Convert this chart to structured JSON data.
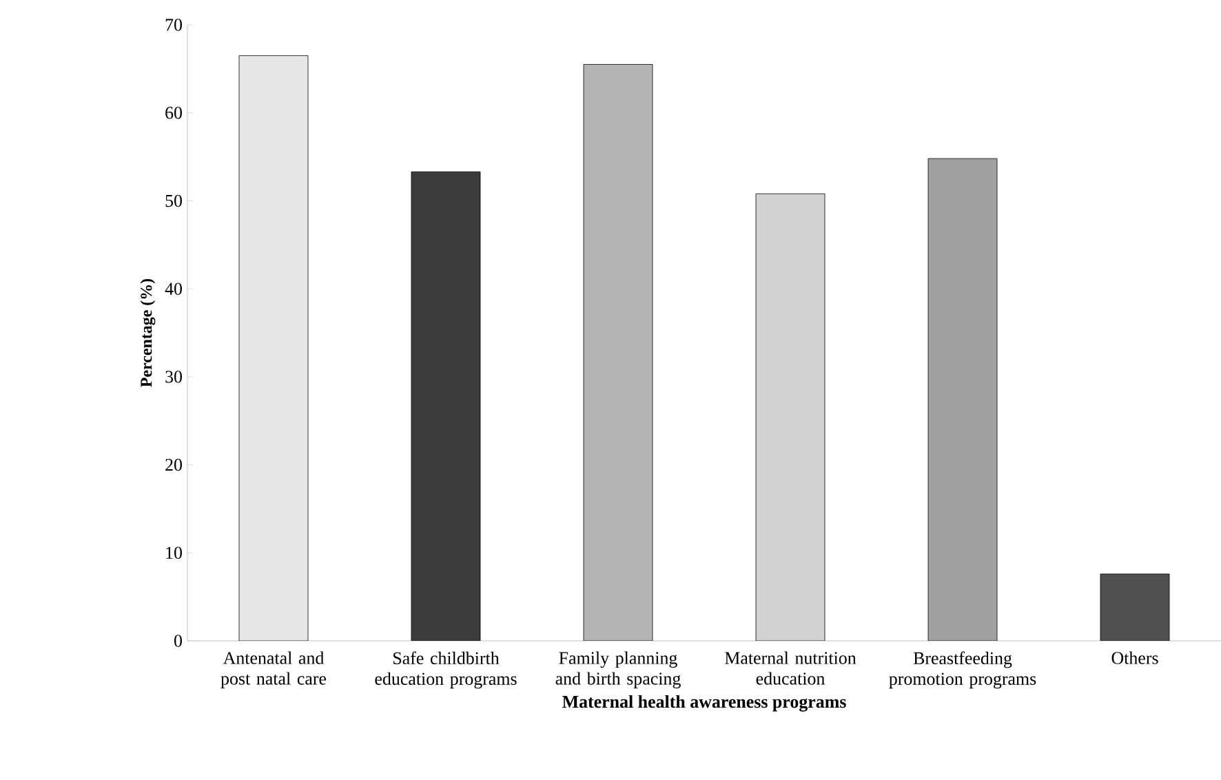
{
  "chart_data": {
    "type": "bar",
    "xlabel": "Maternal health awareness programs",
    "ylabel": "Percentage (%)",
    "categories": [
      "Antenatal and post natal care",
      "Safe childbirth education programs",
      "Family planning and birth spacing",
      "Maternal nutrition education",
      "Breastfeeding promotion programs",
      "Others"
    ],
    "values": [
      66.5,
      53.3,
      65.5,
      50.8,
      54.8,
      7.6
    ],
    "colors": [
      "#e6e6e6",
      "#3c3c3c",
      "#b4b4b4",
      "#d2d2d2",
      "#a0a0a0",
      "#505050"
    ],
    "ylim": [
      0,
      70
    ],
    "yticks": [
      0,
      10,
      20,
      30,
      40,
      50,
      60,
      70
    ],
    "grid": false
  }
}
